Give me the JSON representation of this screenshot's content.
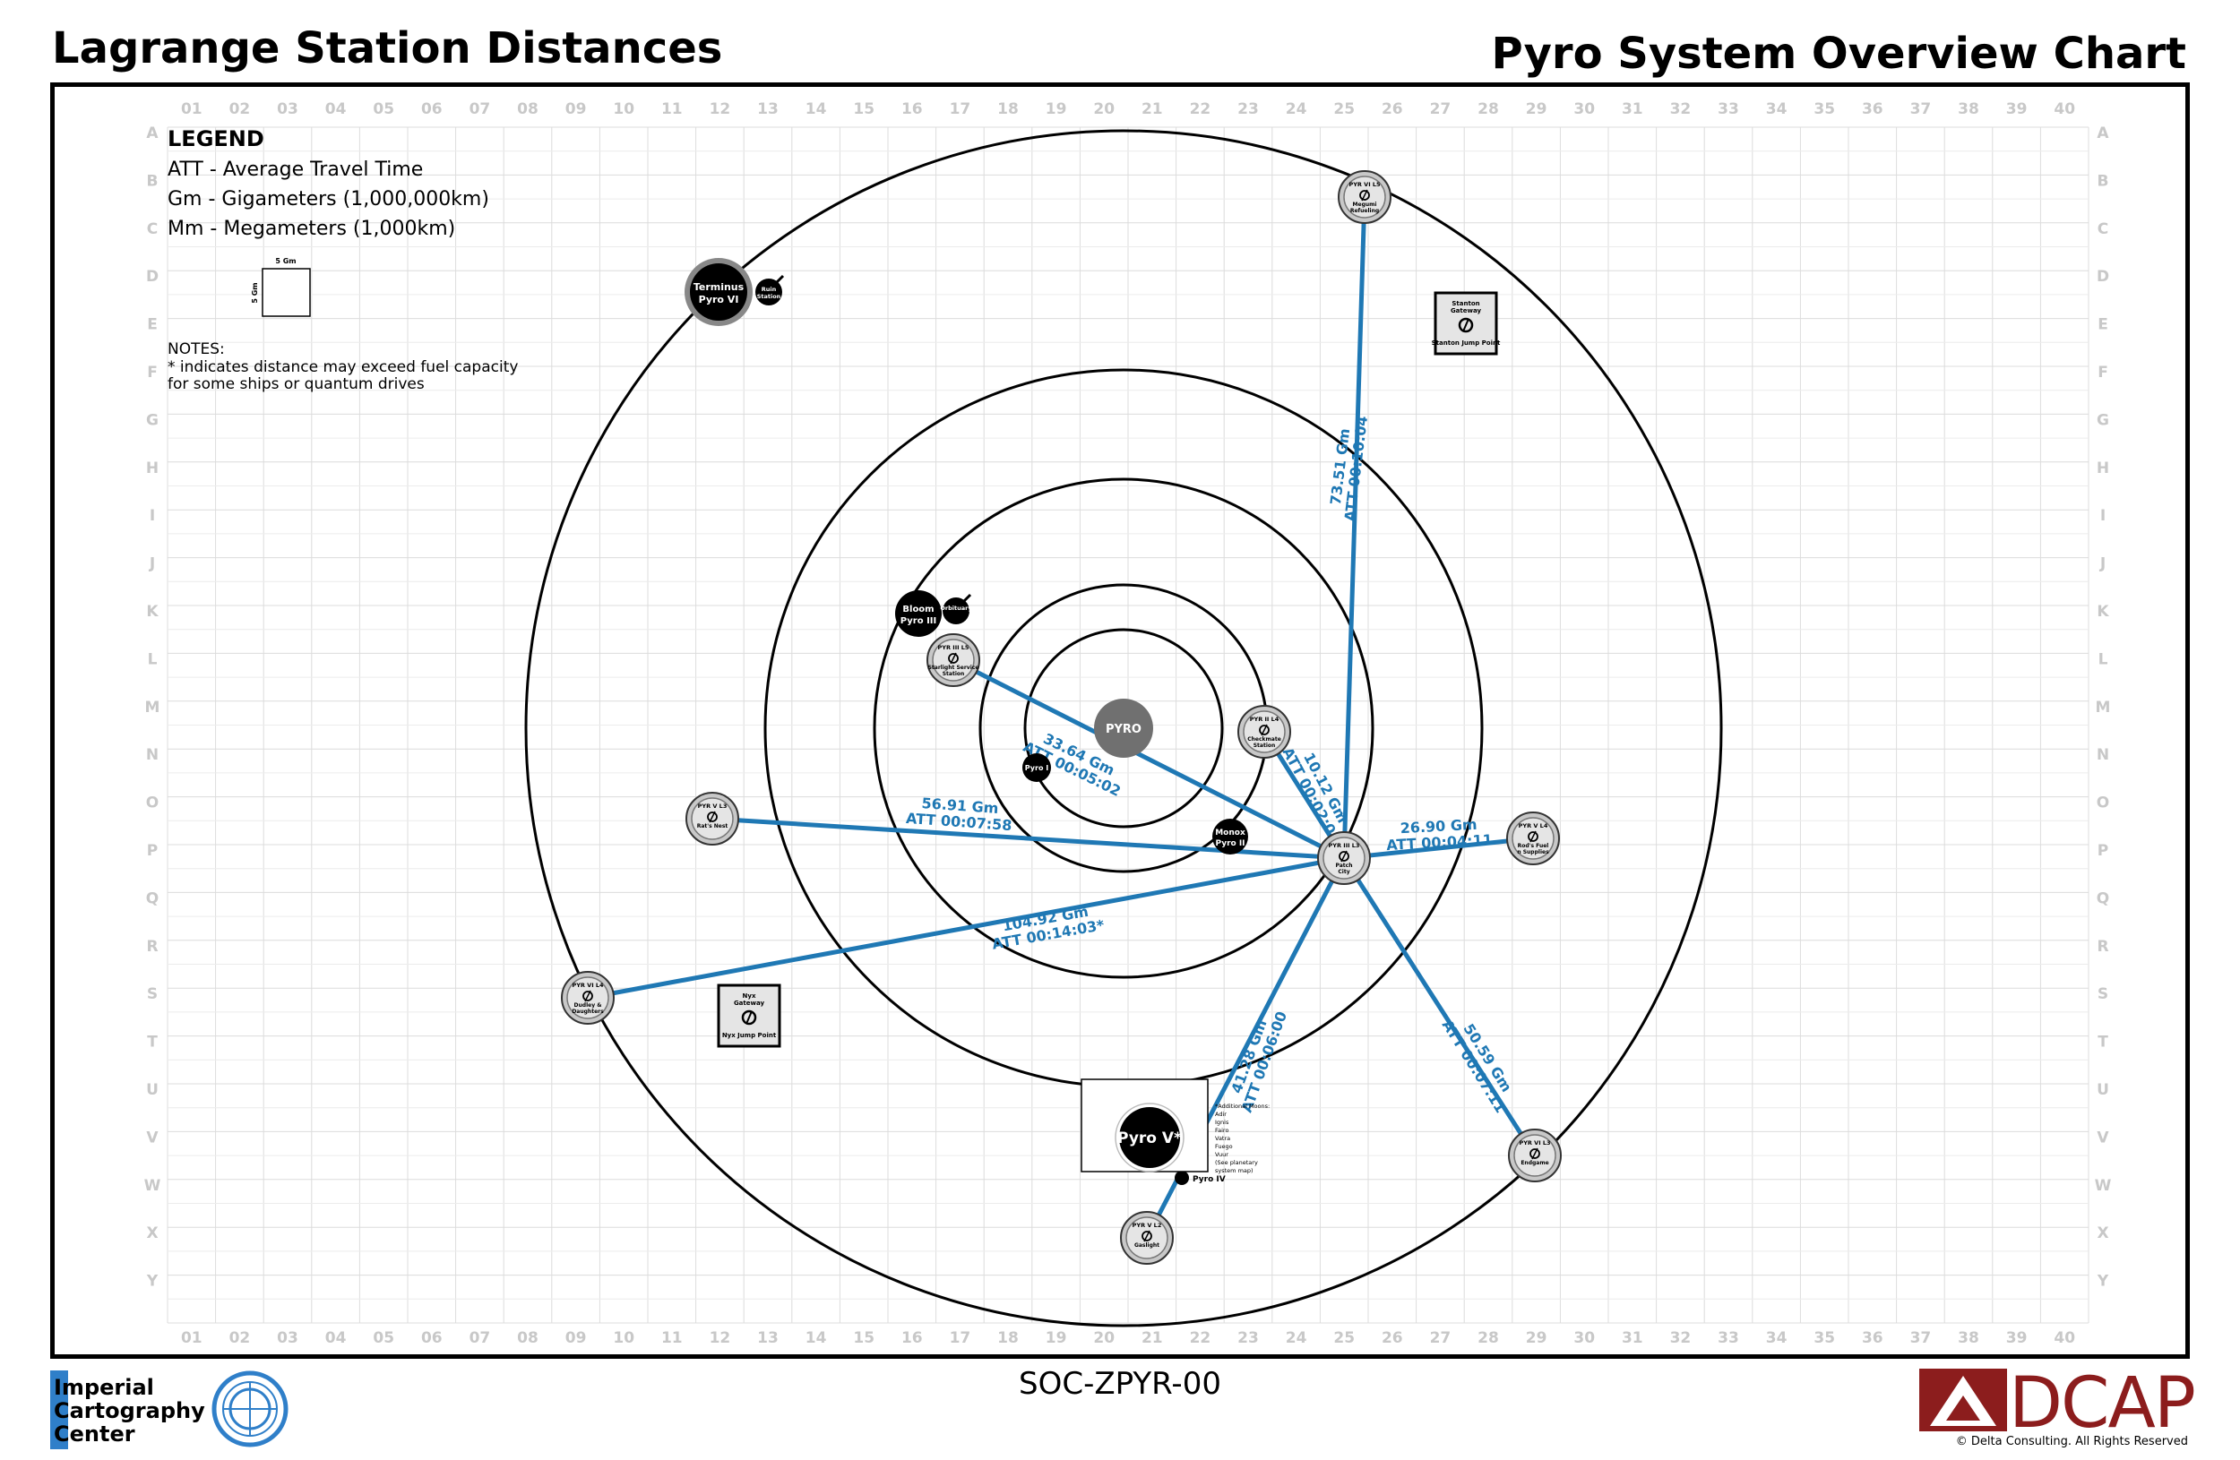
{
  "header": {
    "left_title": "Lagrange Station Distances",
    "right_title": "Pyro System Overview Chart"
  },
  "grid": {
    "columns": [
      "01",
      "02",
      "03",
      "04",
      "05",
      "06",
      "07",
      "08",
      "09",
      "10",
      "11",
      "12",
      "13",
      "14",
      "15",
      "16",
      "17",
      "18",
      "19",
      "20",
      "21",
      "22",
      "23",
      "24",
      "25",
      "26",
      "27",
      "28",
      "29",
      "30",
      "31",
      "32",
      "33",
      "34",
      "35",
      "36",
      "37",
      "38",
      "39",
      "40"
    ],
    "rows": [
      "A",
      "B",
      "C",
      "D",
      "E",
      "F",
      "G",
      "H",
      "I",
      "J",
      "K",
      "L",
      "M",
      "N",
      "O",
      "P",
      "Q",
      "R",
      "S",
      "T",
      "U",
      "V",
      "W",
      "X",
      "Y"
    ]
  },
  "legend": {
    "title": "LEGEND",
    "lines": [
      "ATT - Average Travel Time",
      "Gm - Gigameters (1,000,000km)",
      "Mm - Megameters (1,000km)"
    ],
    "scale_label_top": "5 Gm",
    "scale_label_side": "5 Gm",
    "notes_title": "NOTES:",
    "notes_lines": [
      "* indicates distance may exceed fuel capacity",
      "for some ships or quantum drives"
    ]
  },
  "colors": {
    "route": "#1f78b4",
    "star": "#707070",
    "planet": "#000000",
    "station_fill": "#e5e5e5",
    "grid_line": "#dcdcdc",
    "grid_label": "#c8c8c8"
  },
  "star": {
    "label": "PYRO"
  },
  "planets": [
    {
      "id": "pyro-i",
      "label": "Pyro I"
    },
    {
      "id": "pyro-ii",
      "label": "Monox Pyro II"
    },
    {
      "id": "pyro-iii",
      "label": "Bloom Pyro III"
    },
    {
      "id": "pyro-iv",
      "label": "Pyro IV"
    },
    {
      "id": "pyro-v",
      "label": "Pyro V*"
    },
    {
      "id": "pyro-vi",
      "label": "Terminus Pyro VI"
    }
  ],
  "outposts": [
    {
      "id": "orbituary",
      "label": "Orbituary"
    },
    {
      "id": "ruin-station",
      "label": "Ruin Station"
    }
  ],
  "jump_points": [
    {
      "id": "stanton",
      "line1": "Stanton",
      "line2": "Gateway",
      "caption": "Stanton Jump Point"
    },
    {
      "id": "nyx",
      "line1": "Nyx",
      "line2": "Gateway",
      "caption": "Nyx Jump Point"
    }
  ],
  "stations": [
    {
      "id": "pyr3-l5",
      "code": "PYR III L5",
      "name": "Starlight Service Station"
    },
    {
      "id": "pyr2-l4",
      "code": "PYR II L4",
      "name": "Checkmate Station"
    },
    {
      "id": "pyr3-l3",
      "code": "PYR III L3",
      "name": "Patch City"
    },
    {
      "id": "pyr5-l3",
      "code": "PYR V L3",
      "name": "Rat's Nest"
    },
    {
      "id": "pyr5-l4",
      "code": "PYR V L4",
      "name": "Rod's Fuel n Supplies"
    },
    {
      "id": "pyr6-l4",
      "code": "PYR VI L4",
      "name": "Dudley & Daughters"
    },
    {
      "id": "pyr6-l5",
      "code": "PYR VI L5",
      "name": "Megumi Refueling"
    },
    {
      "id": "pyr6-l3",
      "code": "PYR VI L3",
      "name": "Endgame"
    },
    {
      "id": "pyr5-l2",
      "code": "PYR V L2",
      "name": "Gaslight"
    }
  ],
  "routes": [
    {
      "from": "pyr3-l3",
      "to": "pyr6-l5",
      "distance": "73.51 Gm",
      "att": "ATT 00:10:04"
    },
    {
      "from": "pyr3-l3",
      "to": "pyr3-l5",
      "distance": "33.64 Gm",
      "att": "ATT 00:05:02"
    },
    {
      "from": "pyr3-l3",
      "to": "pyr2-l4",
      "distance": "10.12 Gm",
      "att": "ATT 00:02:03"
    },
    {
      "from": "pyr3-l3",
      "to": "pyr5-l3",
      "distance": "56.91 Gm",
      "att": "ATT 00:07:58"
    },
    {
      "from": "pyr3-l3",
      "to": "pyr5-l4",
      "distance": "26.90 Gm",
      "att": "ATT 00:04:11"
    },
    {
      "from": "pyr3-l3",
      "to": "pyr6-l4",
      "distance": "104.92 Gm",
      "att": "ATT 00:14:03*"
    },
    {
      "from": "pyr3-l3",
      "to": "pyr5-l2",
      "distance": "41.28 Gm",
      "att": "ATT 00:06:00"
    },
    {
      "from": "pyr3-l3",
      "to": "pyr6-l3",
      "distance": "50.59 Gm",
      "att": "ATT 00:07:11"
    }
  ],
  "inset_note": [
    "*Additional Moons:",
    "Adir",
    "Ignis",
    "Fairo",
    "Vatra",
    "Fuego",
    "Vuur",
    "(See planetary",
    "system map)"
  ],
  "footer": {
    "code": "SOC-ZPYR-00",
    "icc_lines": [
      "Imperial",
      "Cartography",
      "Center"
    ],
    "dcap_name": "DCAP",
    "copyright": "Delta Consulting.  All Rights Reserved"
  }
}
